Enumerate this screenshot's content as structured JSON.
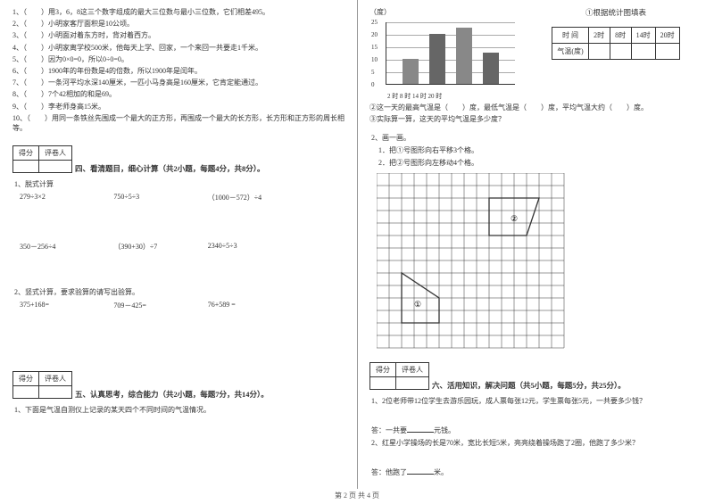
{
  "left": {
    "questions": [
      "1、（　　）用3，6，8这三个数字组成的最大三位数与最小三位数，它们相差495。",
      "2、（　　）小明家客厅面积是10公顷。",
      "3、（　　）小明面对着东方时，背对着西方。",
      "4、（　　）小明家离学校500米，他每天上学、回家，一个来回一共要走1千米。",
      "5、（　　）因为0×0=0，所以0÷0=0。",
      "6、（　　）1900年的年份数是4的倍数，所以1900年是闰年。",
      "7、（　　）一条河平均水深140厘米，一匹小马身高是160厘米，它肯定能通过。",
      "8、（　　）7个42相加的和是69。",
      "9、（　　）李老师身高15米。",
      "10、（　　）用同一条铁丝先围成一个最大的正方形，再围成一个最大的长方形，长方形和正方形的周长相等。"
    ],
    "score_label_a": "得分",
    "score_label_b": "评卷人",
    "section4_title": "四、看清题目，细心计算（共2小题，每题4分，共8分）。",
    "q4_1": "1、脱式计算",
    "calc_row1": [
      "279÷3×2",
      "750÷5÷3",
      "（1000－572）÷4"
    ],
    "calc_row2": [
      "350－256÷4",
      "（390+30）÷7",
      "2340÷5÷3"
    ],
    "q4_2": "2、竖式计算，要求验算的请写出验算。",
    "calc_row3": [
      "375+168=",
      "709－425=",
      "76+589 ="
    ],
    "section5_title": "五、认真思考，综合能力（共2小题，每题7分，共14分）。",
    "q5_1": "1、下面是气温自测仪上记录的某天四个不同时间的气温情况。"
  },
  "right": {
    "chart_title": "①根据统计图填表",
    "y_unit": "（度）",
    "y_ticks": [
      "25",
      "20",
      "15",
      "10",
      "5",
      "0"
    ],
    "x_labels": "2 时 8 时 14 时 20 时",
    "bars": [
      {
        "left": 18,
        "height": 28,
        "color": "#888"
      },
      {
        "left": 48,
        "height": 56,
        "color": "#666"
      },
      {
        "left": 78,
        "height": 63,
        "color": "#888"
      },
      {
        "left": 108,
        "height": 35,
        "color": "#666"
      }
    ],
    "table_headers": [
      "时 间",
      "2时",
      "8时",
      "14时",
      "20时"
    ],
    "table_row_label": "气温(度)",
    "q2": "②这一天的最高气温是（　　）度，最低气温是（　　）度，平均气温大约（　　）度。",
    "q3": "③实际算一算，这天的平均气温是多少度？",
    "draw_title": "2、画一画。",
    "draw_1": "1．把①号图形向右平移3个格。",
    "draw_2": "2．把②号图形向左移动4个格。",
    "grid": {
      "cols": 15,
      "rows": 14,
      "cell": 14
    },
    "shape2_label": "②",
    "shape1_label": "①",
    "section6_title": "六、活用知识，解决问题（共5小题，每题5分，共25分）。",
    "q6_1": "1、2位老师带12位学生去游乐园玩，成人票每张12元，学生票每张5元，一共要多少钱？",
    "ans1_prefix": "答：一共要",
    "ans1_suffix": "元钱。",
    "q6_2": "2、红星小学操场的长是70米，宽比长短5米，亮亮绕着操场跑了2圈，他跑了多少米？",
    "ans2_prefix": "答：他跑了",
    "ans2_suffix": "米。"
  },
  "footer": "第 2 页 共 4 页"
}
